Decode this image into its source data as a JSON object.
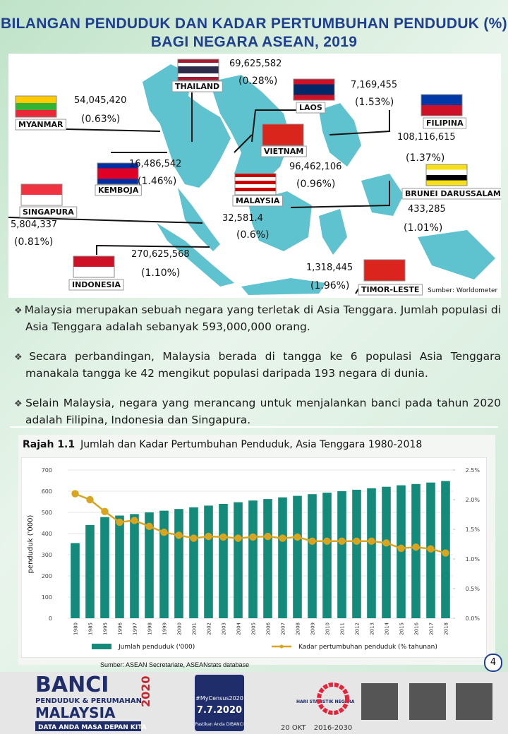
{
  "header": {
    "title": [
      "BILANGAN PENDUDUK DAN KADAR PERTUMBUHAN PENDUDUK (%)",
      "BAGI NEGARA ASEAN, 2019"
    ]
  },
  "map": {
    "countries": [
      {
        "name": "THAILAND",
        "population": "69,625,582",
        "growth": "(0.28%)"
      },
      {
        "name": "LAOS",
        "population": "7,169,455",
        "growth": "(1.53%)"
      },
      {
        "name": "MYANMAR",
        "population": "54,045,420",
        "growth": "(0.63%)"
      },
      {
        "name": "FILIPINA",
        "population": "108,116,615",
        "growth": "(1.37%)"
      },
      {
        "name": "VIETNAM",
        "population": "96,462,106",
        "growth": "(0.96%)"
      },
      {
        "name": "KEMBOJA",
        "population": "16,486,542",
        "growth": "(1.46%)"
      },
      {
        "name": "MALAYSIA",
        "population": "32,581.4",
        "growth": "(0.6%)"
      },
      {
        "name": "BRUNEI DARUSSALAM",
        "population": "433,285",
        "growth": "(1.01%)"
      },
      {
        "name": "SINGAPURA",
        "population": "5,804,337",
        "growth": "(0.81%)"
      },
      {
        "name": "INDONESIA",
        "population": "270,625,568",
        "growth": "(1.10%)"
      },
      {
        "name": "TIMOR-LESTE",
        "population": "1,318,445",
        "growth": "(1.96%)"
      }
    ],
    "source": "Sumber: Worldometer"
  },
  "bullets": [
    "Malaysia merupakan sebuah negara yang terletak di Asia Tenggara. Jumlah populasi di Asia Tenggara adalah sebanyak 593,000,000  orang.",
    "Secara perbandingan, Malaysia berada di tangga ke 6 populasi Asia Tenggara manakala tangga ke 42 mengikut populasi daripada 193 negara di dunia.",
    "Selain Malaysia, negara yang merancang untuk menjalankan  banci pada tahun 2020 adalah Filipina, Indonesia dan Singapura."
  ],
  "figure": {
    "label": "Rajah 1.1",
    "title": "Jumlah dan Kadar Pertumbuhan Penduduk, Asia Tenggara 1980-2018",
    "source": "Sumber: ASEAN Secretariate, ASEANstats database"
  },
  "chart_data": {
    "type": "bar",
    "categories": [
      "1980",
      "1985",
      "1995",
      "1996",
      "1997",
      "1998",
      "1999",
      "2000",
      "2001",
      "2002",
      "2003",
      "2004",
      "2005",
      "2006",
      "2007",
      "2008",
      "2009",
      "2010",
      "2011",
      "2012",
      "2013",
      "2014",
      "2015",
      "2016",
      "2017",
      "2018"
    ],
    "ylabel": "penduduk ('000)",
    "series": [
      {
        "name": "Jumlah penduduk ('000)",
        "type": "bar",
        "color": "#138a7a",
        "axis": "y",
        "values": [
          355,
          440,
          478,
          485,
          492,
          500,
          508,
          516,
          524,
          532,
          540,
          548,
          556,
          563,
          571,
          578,
          586,
          593,
          600,
          607,
          614,
          621,
          628,
          634,
          641,
          648
        ]
      },
      {
        "name": "Kadar pertumbuhan penduduk (% tahunan)",
        "type": "line",
        "color": "#d9a520",
        "axis": "y2",
        "values": [
          2.1,
          2.0,
          1.8,
          1.62,
          1.65,
          1.55,
          1.45,
          1.4,
          1.35,
          1.38,
          1.37,
          1.35,
          1.37,
          1.38,
          1.35,
          1.37,
          1.3,
          1.3,
          1.3,
          1.3,
          1.3,
          1.27,
          1.18,
          1.2,
          1.17,
          1.1
        ]
      }
    ],
    "ylim": [
      0,
      700
    ],
    "yticks": [
      0,
      100,
      200,
      300,
      400,
      500,
      600,
      700
    ],
    "y2lim": [
      0,
      2.5
    ],
    "y2ticks": [
      {
        "value": 0,
        "label": "0.0%"
      },
      {
        "value": 0.5,
        "label": "0.5%"
      },
      {
        "value": 1,
        "label": "1.0%"
      },
      {
        "value": 1.5,
        "label": "1.5%"
      },
      {
        "value": 2,
        "label": "2.0%"
      },
      {
        "value": 2.5,
        "label": "2.5%"
      }
    ],
    "grid": true,
    "legend": "bottom"
  },
  "page_number": "4",
  "footer": {
    "banci": "BANCI",
    "year": "2020",
    "subtitle": "PENDUDUK & PERUMAHAN",
    "country": "MALAYSIA",
    "tagline": "DATA ANDA MASA DEPAN KITA",
    "hashtag": "#MyCensus2020",
    "date": "7.7.2020",
    "slogan": "Pastikan Anda DIBANCI",
    "statday": "HARI STATISTIK NEGARA",
    "statdate": "20 OKT",
    "sdg": "2016-2030"
  }
}
